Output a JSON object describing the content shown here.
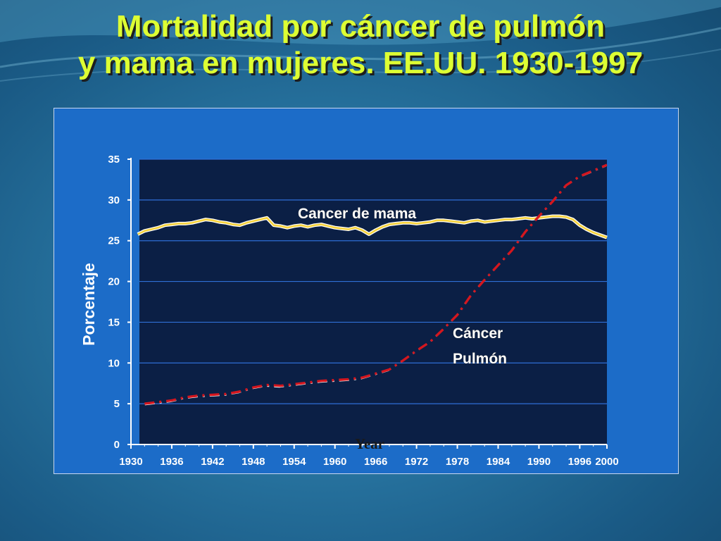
{
  "title": {
    "line1": "Mortalidad por cáncer de pulmón",
    "line2": "y mama en mujeres. EE.UU. 1930-1997"
  },
  "colors": {
    "title": "#ddff33",
    "plot_background": "#0b1f45",
    "chart_frame": "#1c6cc8",
    "breast_line": "#f6d23c",
    "lung_line": "#d4161e",
    "gridline": "#2f6fd6"
  },
  "chart_data": {
    "type": "line",
    "xlabel": "Year",
    "ylabel": "Porcentaje",
    "xlim": [
      1930,
      2000
    ],
    "ylim": [
      0,
      35
    ],
    "x_ticks": [
      "1930",
      "1936",
      "1942",
      "1948",
      "1954",
      "1960",
      "1966",
      "1972",
      "1978",
      "1984",
      "1990",
      "1996",
      "2000"
    ],
    "y_ticks": [
      "0",
      "5",
      "10",
      "15",
      "20",
      "25",
      "30",
      "35"
    ],
    "grid": true,
    "annotations": [
      {
        "text": "Cancer de mama",
        "series": "breast"
      },
      {
        "text": "Cáncer",
        "series": "lung"
      },
      {
        "text": "Pulmón",
        "series": "lung"
      }
    ],
    "series": [
      {
        "id": "breast",
        "style": "solid",
        "x": [
          1931,
          1932,
          1933,
          1934,
          1935,
          1936,
          1937,
          1938,
          1939,
          1940,
          1941,
          1942,
          1943,
          1944,
          1945,
          1946,
          1947,
          1948,
          1949,
          1950,
          1951,
          1952,
          1953,
          1954,
          1955,
          1956,
          1957,
          1958,
          1959,
          1960,
          1961,
          1962,
          1963,
          1964,
          1965,
          1966,
          1967,
          1968,
          1969,
          1970,
          1971,
          1972,
          1973,
          1974,
          1975,
          1976,
          1977,
          1978,
          1979,
          1980,
          1981,
          1982,
          1983,
          1984,
          1985,
          1986,
          1987,
          1988,
          1989,
          1990,
          1991,
          1992,
          1993,
          1994,
          1995,
          1996,
          1997,
          1998,
          1999,
          2000
        ],
        "values": [
          25.8,
          26.2,
          26.4,
          26.6,
          26.9,
          27.0,
          27.1,
          27.1,
          27.2,
          27.4,
          27.6,
          27.5,
          27.3,
          27.2,
          27.0,
          26.9,
          27.2,
          27.4,
          27.6,
          27.8,
          26.9,
          26.8,
          26.6,
          26.8,
          26.9,
          26.7,
          26.9,
          27.0,
          26.8,
          26.6,
          26.5,
          26.4,
          26.6,
          26.3,
          25.8,
          26.3,
          26.7,
          27.0,
          27.1,
          27.2,
          27.2,
          27.1,
          27.2,
          27.3,
          27.5,
          27.5,
          27.4,
          27.3,
          27.2,
          27.4,
          27.5,
          27.3,
          27.4,
          27.5,
          27.6,
          27.6,
          27.7,
          27.8,
          27.7,
          27.8,
          27.9,
          28.0,
          28.0,
          27.9,
          27.6,
          26.9,
          26.4,
          26.0,
          25.7,
          25.4
        ]
      },
      {
        "id": "lung",
        "style": "dashed",
        "x": [
          1932,
          1934,
          1936,
          1938,
          1940,
          1942,
          1944,
          1946,
          1948,
          1950,
          1952,
          1954,
          1956,
          1958,
          1960,
          1962,
          1964,
          1966,
          1968,
          1970,
          1972,
          1974,
          1976,
          1978,
          1980,
          1982,
          1984,
          1986,
          1988,
          1990,
          1992,
          1994,
          1996,
          1998,
          2000
        ],
        "values": [
          5.0,
          5.2,
          5.4,
          5.8,
          6.0,
          6.1,
          6.2,
          6.5,
          7.0,
          7.3,
          7.2,
          7.4,
          7.6,
          7.8,
          7.9,
          8.0,
          8.2,
          8.7,
          9.2,
          10.3,
          11.5,
          12.6,
          14.2,
          15.9,
          18.3,
          20.2,
          22.0,
          23.8,
          26.1,
          28.0,
          29.8,
          31.8,
          32.9,
          33.6,
          34.3
        ]
      }
    ]
  }
}
